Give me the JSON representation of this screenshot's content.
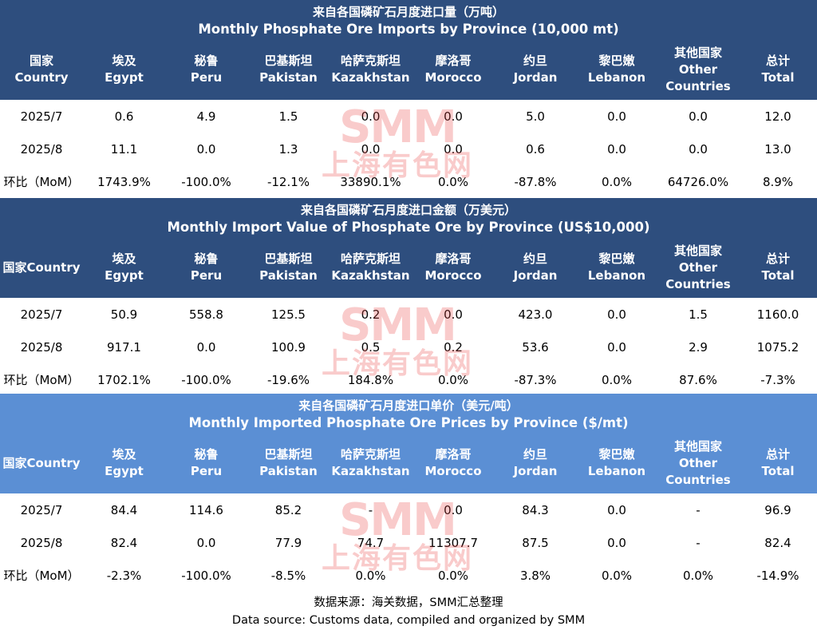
{
  "columns": [
    {
      "zh": "国家",
      "en": "Country"
    },
    {
      "zh": "埃及",
      "en": "Egypt"
    },
    {
      "zh": "秘鲁",
      "en": "Peru"
    },
    {
      "zh": "巴基斯坦",
      "en": "Pakistan"
    },
    {
      "zh": "哈萨克斯坦",
      "en": "Kazakhstan"
    },
    {
      "zh": "摩洛哥",
      "en": "Morocco"
    },
    {
      "zh": "约旦",
      "en": "Jordan"
    },
    {
      "zh": "黎巴嫩",
      "en": "Lebanon"
    },
    {
      "zh": "其他国家",
      "en": "Other Countries",
      "en1": "Other",
      "en2": "Countries"
    },
    {
      "zh": "总计",
      "en": "Total"
    }
  ],
  "watermark": {
    "logo": "SMM",
    "zh": "上海有色网"
  },
  "footer": {
    "zh": "数据来源：海关数据，SMM汇总整理",
    "en": "Data source: Customs data, compiled and organized by SMM"
  },
  "chart_data": [
    {
      "type": "table",
      "title_zh": "来自各国磷矿石月度进口量（万吨）",
      "title": "Monthly Phosphate Ore Imports by Province (10,000 mt)",
      "country_header": {
        "zh": "国家",
        "en": "Country"
      },
      "rows": [
        [
          "2025/7",
          "0.6",
          "4.9",
          "1.5",
          "0.0",
          "0.0",
          "5.0",
          "0.0",
          "0.0",
          "12.0"
        ],
        [
          "2025/8",
          "11.1",
          "0.0",
          "1.3",
          "0.0",
          "0.0",
          "0.6",
          "0.0",
          "0.0",
          "13.0"
        ],
        [
          "环比（MoM）",
          "1743.9%",
          "-100.0%",
          "-12.1%",
          "33890.1%",
          "0.0%",
          "-87.8%",
          "0.0%",
          "64726.0%",
          "8.9%"
        ]
      ]
    },
    {
      "type": "table",
      "title_zh": "来自各国磷矿石月度进口金额（万美元）",
      "title": "Monthly Import Value of Phosphate Ore by Province (US$10,000)",
      "country_header": {
        "zh": "国家Country",
        "en": ""
      },
      "rows": [
        [
          "2025/7",
          "50.9",
          "558.8",
          "125.5",
          "0.2",
          "0.0",
          "423.0",
          "0.0",
          "1.5",
          "1160.0"
        ],
        [
          "2025/8",
          "917.1",
          "0.0",
          "100.9",
          "0.5",
          "0.2",
          "53.6",
          "0.0",
          "2.9",
          "1075.2"
        ],
        [
          "环比（MoM）",
          "1702.1%",
          "-100.0%",
          "-19.6%",
          "184.8%",
          "0.0%",
          "-87.3%",
          "0.0%",
          "87.6%",
          "-7.3%"
        ]
      ]
    },
    {
      "type": "table",
      "title_zh": "来自各国磷矿石月度进口单价（美元/吨）",
      "title": "Monthly Imported Phosphate Ore Prices by Province ($/mt)",
      "country_header": {
        "zh": "国家Country",
        "en": ""
      },
      "rows": [
        [
          "2025/7",
          "84.4",
          "114.6",
          "85.2",
          "-",
          "0.0",
          "84.3",
          "0.0",
          "-",
          "96.9"
        ],
        [
          "2025/8",
          "82.4",
          "0.0",
          "77.9",
          "74.7",
          "11307.7",
          "87.5",
          "0.0",
          "-",
          "82.4"
        ],
        [
          "环比（MoM）",
          "-2.3%",
          "-100.0%",
          "-8.5%",
          "0.0%",
          "0.0%",
          "3.8%",
          "0.0%",
          "0.0%",
          "-14.9%"
        ]
      ]
    }
  ]
}
